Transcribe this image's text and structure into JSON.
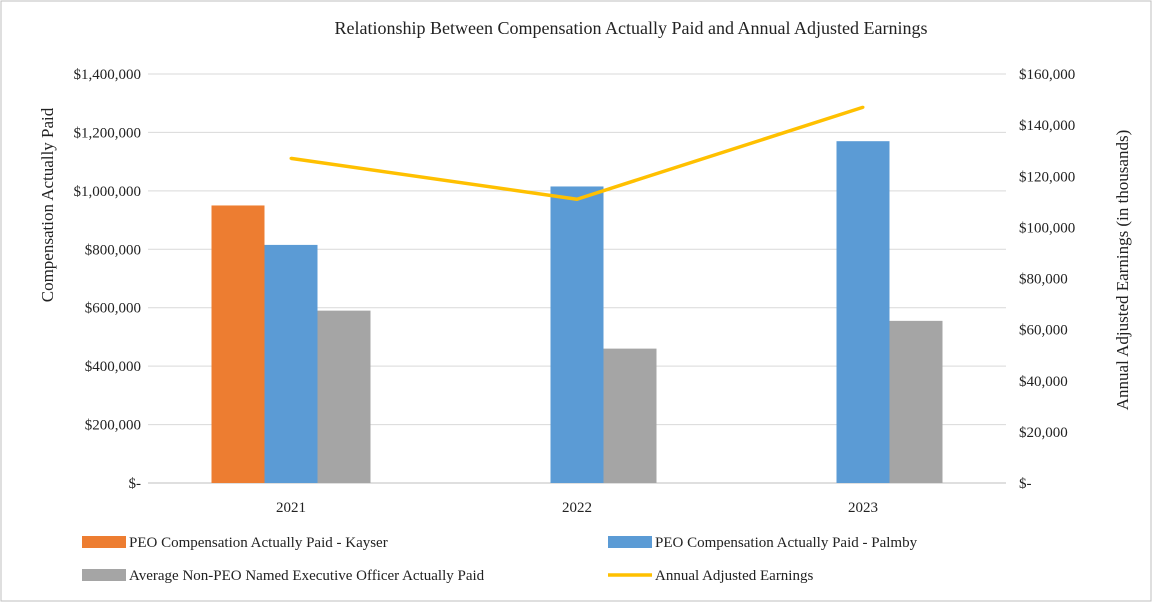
{
  "chart_data": {
    "type": "bar",
    "title": "Relationship Between Compensation Actually Paid and Annual Adjusted Earnings",
    "categories": [
      "2021",
      "2022",
      "2023"
    ],
    "ylabel": "Compensation Actually Paid",
    "y2label": "Annual  Adjusted Earnings (in thousands)",
    "ylim": [
      0,
      1400000
    ],
    "y2lim": [
      0,
      160000
    ],
    "yticks": [
      "$-",
      "$200,000",
      "$400,000",
      "$600,000",
      "$800,000",
      "$1,000,000",
      "$1,200,000",
      "$1,400,000"
    ],
    "y2ticks": [
      "$-",
      "$20,000",
      "$40,000",
      "$60,000",
      "$80,000",
      "$100,000",
      "$120,000",
      "$140,000",
      "$160,000"
    ],
    "grid": true,
    "legend_position": "bottom",
    "series": [
      {
        "name": "PEO Compensation Actually Paid - Kayser",
        "type": "bar",
        "axis": "left",
        "color": "#ED7D31",
        "values": [
          950000,
          null,
          null
        ]
      },
      {
        "name": "PEO Compensation Actually Paid - Palmby",
        "type": "bar",
        "axis": "left",
        "color": "#5B9BD5",
        "values": [
          815000,
          1015000,
          1170000
        ]
      },
      {
        "name": "Average Non-PEO Named Executive Officer Actually Paid",
        "type": "bar",
        "axis": "left",
        "color": "#A5A5A5",
        "values": [
          590000,
          460000,
          555000
        ]
      },
      {
        "name": "Annual Adjusted Earnings",
        "type": "line",
        "axis": "right",
        "color": "#FFC000",
        "values": [
          127000,
          111000,
          147000
        ]
      }
    ]
  }
}
